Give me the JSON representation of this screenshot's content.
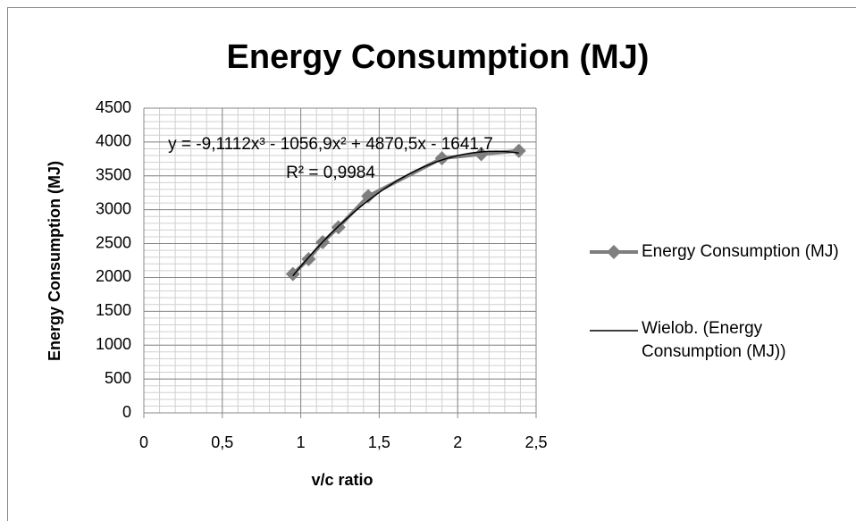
{
  "chart_data": {
    "type": "scatter",
    "title": "Energy Consumption (MJ)",
    "xlabel": "v/c ratio",
    "ylabel": "Energy Consumption (MJ)",
    "x": [
      0.95,
      1.05,
      1.14,
      1.24,
      1.43,
      1.9,
      2.15,
      2.39
    ],
    "series": [
      {
        "name": "Energy Consumption (MJ)",
        "color": "#7f7f7f",
        "values": [
          2050,
          2270,
          2520,
          2740,
          3200,
          3760,
          3820,
          3870
        ]
      }
    ],
    "trendline": {
      "name": "Wielob. (Energy Consumption (MJ))",
      "color": "#000000",
      "coefficients": [
        -9.1112,
        -1056.9,
        4870.5,
        -1641.7
      ],
      "equation": "y = -9,1112x³ - 1056,9x² + 4870,5x - 1641,7",
      "r2": 0.9984,
      "r2_label": "R² = 0,9984"
    },
    "xlim": [
      0,
      2.5
    ],
    "xticks": [
      0,
      {
        "value": 0.5,
        "label": "0,5"
      },
      1,
      {
        "value": 1.5,
        "label": "1,5"
      },
      2,
      {
        "value": 2.5,
        "label": "2,5"
      }
    ],
    "ylim": [
      0,
      4500
    ],
    "yticks": [
      0,
      500,
      1000,
      1500,
      2000,
      2500,
      3000,
      3500,
      4000,
      4500
    ],
    "grid": true,
    "minor_grid_step": {
      "x": 0.1,
      "y": 100
    },
    "legend": "right"
  }
}
